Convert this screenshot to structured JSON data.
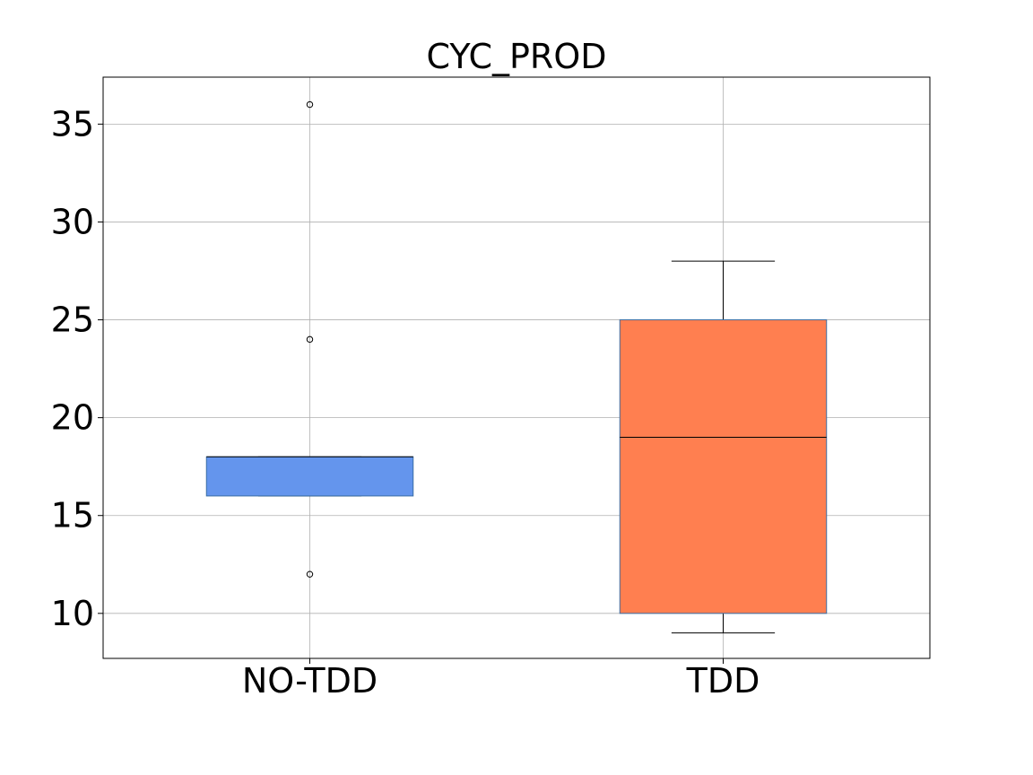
{
  "chart_data": {
    "type": "boxplot",
    "title": "CYC_PROD",
    "xlabel": "",
    "ylabel": "",
    "categories": [
      "NO-TDD",
      "TDD"
    ],
    "ylim": [
      7.7,
      37.4
    ],
    "yticks": [
      10,
      15,
      20,
      25,
      30,
      35
    ],
    "grid": true,
    "boxes": [
      {
        "category": "NO-TDD",
        "color": "#6495ED",
        "whisker_low": 16,
        "q1": 16,
        "median": 18,
        "q3": 18,
        "whisker_high": 18,
        "fliers": [
          36,
          24,
          12
        ]
      },
      {
        "category": "TDD",
        "color": "#FF7F50",
        "whisker_low": 9,
        "q1": 10,
        "median": 19,
        "q3": 25,
        "whisker_high": 28,
        "fliers": []
      }
    ]
  }
}
